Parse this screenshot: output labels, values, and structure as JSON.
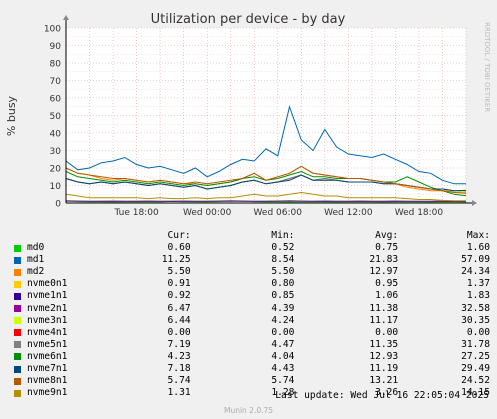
{
  "chart_data": {
    "type": "line",
    "title": "Utilization per device - by day",
    "ylabel": "% busy",
    "ylim": [
      0,
      100
    ],
    "yticks": [
      0,
      10,
      20,
      30,
      40,
      50,
      60,
      70,
      80,
      90,
      100
    ],
    "xticks": [
      {
        "label": "Tue 18:00",
        "hours": 6
      },
      {
        "label": "Wed 00:00",
        "hours": 12
      },
      {
        "label": "Wed 06:00",
        "hours": 18
      },
      {
        "label": "Wed 12:00",
        "hours": 24
      },
      {
        "label": "Wed 18:00",
        "hours": 30
      }
    ],
    "x_range_hours": [
      0,
      34
    ],
    "grid": true,
    "side_label": "RRDTOOL / TOBI OETIKER",
    "series": [
      {
        "name": "md0",
        "color": "#00cc00",
        "cur": "0.60",
        "min": "0.52",
        "avg": "0.75",
        "max": "1.60",
        "values": [
          1.0,
          0.8,
          0.7,
          0.7,
          0.6,
          0.7,
          0.8,
          0.7,
          0.7,
          0.9,
          0.8,
          0.7,
          0.7,
          0.8,
          0.9,
          1.0,
          0.8,
          0.7,
          0.7,
          0.6,
          0.7,
          0.8,
          0.7,
          0.6,
          0.7,
          0.8,
          0.7,
          0.6,
          0.7,
          0.8,
          0.7,
          0.6,
          0.7,
          0.7,
          0.6
        ]
      },
      {
        "name": "md1",
        "color": "#0066b3",
        "cur": "11.25",
        "min": "8.54",
        "avg": "21.83",
        "max": "57.09",
        "values": [
          24,
          19,
          20,
          23,
          24,
          26,
          22,
          20,
          21,
          19,
          17,
          20,
          15,
          18,
          22,
          25,
          24,
          31,
          27,
          55,
          36,
          30,
          42,
          32,
          28,
          27,
          26,
          28,
          25,
          22,
          18,
          17,
          13,
          11,
          11
        ]
      },
      {
        "name": "md2",
        "color": "#ff8000",
        "cur": "5.50",
        "min": "5.50",
        "avg": "12.97",
        "max": "24.34",
        "values": [
          20,
          17,
          16,
          14,
          13,
          14,
          13,
          12,
          13,
          12,
          11,
          11,
          10,
          11,
          12,
          14,
          17,
          13,
          15,
          17,
          21,
          17,
          16,
          15,
          14,
          14,
          13,
          12,
          11,
          9,
          8,
          7,
          7,
          6,
          5.5
        ]
      },
      {
        "name": "nvme0n1",
        "color": "#ffcc00",
        "cur": "0.91",
        "min": "0.80",
        "avg": "0.95",
        "max": "1.37",
        "values": [
          1.0,
          0.9,
          0.9,
          1.0,
          0.9,
          0.9,
          1.0,
          0.9,
          0.9,
          1.0,
          0.9,
          0.9,
          1.0,
          1.1,
          1.0,
          0.9,
          0.9,
          1.0,
          1.1,
          1.0,
          0.9,
          0.9,
          1.0,
          0.9,
          0.9,
          1.0,
          0.9,
          0.9,
          1.0,
          0.9,
          0.9,
          0.9,
          1.0,
          0.9,
          0.9
        ]
      },
      {
        "name": "nvme1n1",
        "color": "#330099",
        "cur": "0.92",
        "min": "0.85",
        "avg": "1.06",
        "max": "1.83",
        "values": [
          1.2,
          1.1,
          1.0,
          1.0,
          1.1,
          1.0,
          1.0,
          1.1,
          1.0,
          1.0,
          1.1,
          1.0,
          1.0,
          1.1,
          1.2,
          1.1,
          1.0,
          1.0,
          1.1,
          1.2,
          1.1,
          1.0,
          1.1,
          1.0,
          1.0,
          1.1,
          1.0,
          1.0,
          1.1,
          1.0,
          1.0,
          1.0,
          1.0,
          0.9,
          0.9
        ]
      },
      {
        "name": "nvme2n1",
        "color": "#990099",
        "cur": "6.47",
        "min": "4.39",
        "avg": "11.38",
        "max": "32.58",
        "values": [
          14,
          12,
          11,
          12,
          11,
          12,
          11,
          10,
          11,
          10,
          9,
          10,
          8,
          9,
          10,
          12,
          13,
          11,
          12,
          14,
          16,
          13,
          14,
          13,
          12,
          12,
          12,
          11,
          11,
          10,
          9,
          8,
          7,
          7,
          6.5
        ]
      },
      {
        "name": "nvme3n1",
        "color": "#ccff00",
        "cur": "6.44",
        "avg": "11.17",
        "min": "4.24",
        "max": "30.35",
        "values": [
          14,
          12,
          11,
          12,
          11,
          12,
          11,
          10,
          11,
          10,
          9,
          10,
          8,
          9,
          10,
          12,
          13,
          11,
          12,
          13,
          16,
          13,
          13,
          13,
          12,
          12,
          12,
          11,
          11,
          10,
          9,
          8,
          7,
          7,
          6.4
        ]
      },
      {
        "name": "nvme4n1",
        "color": "#ff0000",
        "cur": "0.00",
        "min": "0.00",
        "avg": "0.00",
        "max": "0.00",
        "values": [
          0,
          0,
          0,
          0,
          0,
          0,
          0,
          0,
          0,
          0,
          0,
          0,
          0,
          0,
          0,
          0,
          0,
          0,
          0,
          0,
          0,
          0,
          0,
          0,
          0,
          0,
          0,
          0,
          0,
          0,
          0,
          0,
          0,
          0,
          0
        ]
      },
      {
        "name": "nvme5n1",
        "color": "#808080",
        "cur": "7.19",
        "min": "4.47",
        "avg": "11.35",
        "max": "31.78",
        "values": [
          14,
          12,
          11,
          12,
          11,
          12,
          11,
          10,
          11,
          10,
          9,
          10,
          8,
          9,
          10,
          12,
          13,
          11,
          12,
          14,
          16,
          13,
          14,
          13,
          12,
          12,
          12,
          11,
          11,
          10,
          9,
          8,
          8,
          7,
          7.2
        ]
      },
      {
        "name": "nvme6n1",
        "color": "#008f00",
        "cur": "4.23",
        "min": "4.04",
        "avg": "12.93",
        "max": "27.25",
        "values": [
          18,
          15,
          14,
          13,
          12,
          13,
          12,
          11,
          12,
          11,
          10,
          11,
          10,
          11,
          12,
          14,
          15,
          13,
          14,
          16,
          18,
          15,
          15,
          14,
          14,
          14,
          13,
          12,
          12,
          15,
          12,
          9,
          7,
          5,
          4.2
        ]
      },
      {
        "name": "nvme7n1",
        "color": "#00487d",
        "cur": "7.18",
        "min": "4.43",
        "avg": "11.19",
        "max": "29.49",
        "values": [
          14,
          12,
          11,
          12,
          11,
          12,
          11,
          10,
          11,
          10,
          9,
          10,
          8,
          9,
          10,
          12,
          13,
          11,
          12,
          13,
          16,
          13,
          13,
          13,
          12,
          12,
          12,
          11,
          11,
          10,
          9,
          8,
          8,
          7,
          7.2
        ]
      },
      {
        "name": "nvme8n1",
        "color": "#b35a00",
        "cur": "5.74",
        "min": "5.74",
        "avg": "13.21",
        "max": "24.52",
        "values": [
          20,
          17,
          16,
          15,
          14,
          14,
          13,
          12,
          13,
          12,
          11,
          12,
          11,
          12,
          13,
          14,
          17,
          13,
          15,
          17,
          21,
          17,
          16,
          15,
          14,
          14,
          13,
          12,
          11,
          10,
          9,
          8,
          7,
          6,
          5.7
        ]
      },
      {
        "name": "nvme9n1",
        "color": "#b38f00",
        "cur": "1.31",
        "min": "1.28",
        "avg": "3.26",
        "max": "14.15",
        "values": [
          5,
          4,
          3,
          3,
          3,
          3,
          3,
          2.5,
          3,
          2.5,
          2.5,
          3,
          2.5,
          3,
          3,
          4,
          5,
          4,
          4,
          5,
          6,
          5,
          4,
          4,
          3,
          3,
          3,
          3,
          3,
          2.5,
          2,
          2,
          1.5,
          1.3,
          1.3
        ]
      }
    ]
  },
  "legend": {
    "header": {
      "cur": "Cur:",
      "min": "Min:",
      "avg": "Avg:",
      "max": "Max:"
    }
  },
  "footer": {
    "last_update": "Last update: Wed Jul 16 22:05:04 2025",
    "munin_version": "Munin 2.0.75"
  }
}
